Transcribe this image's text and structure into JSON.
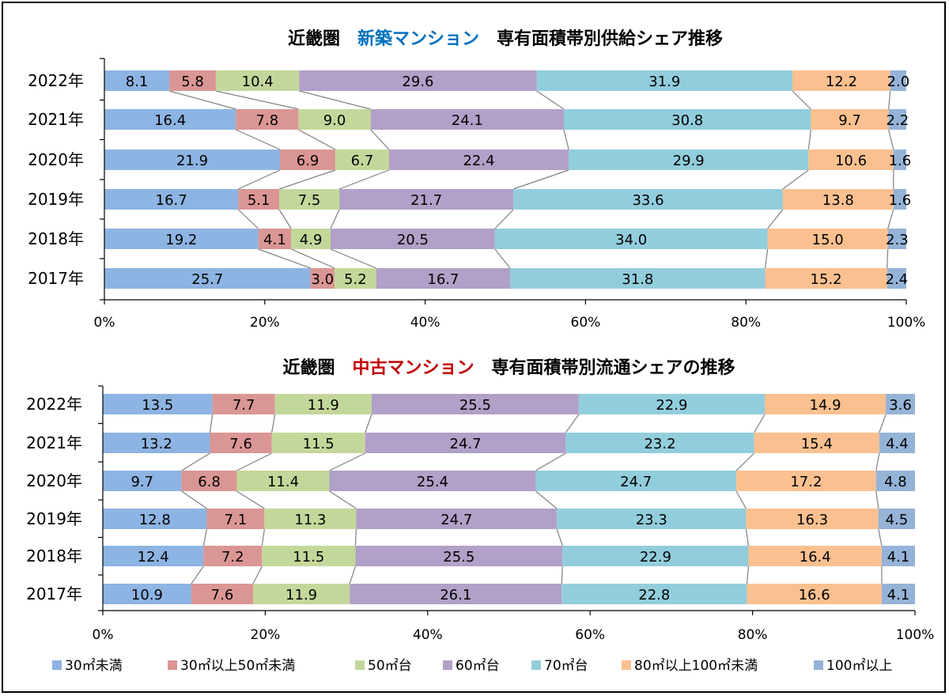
{
  "chart_data": [
    {
      "type": "bar",
      "orientation": "horizontal-stacked-percent",
      "title": {
        "prefix": "近畿圏",
        "highlight": "新築マンション",
        "highlight_color": "#0070c0",
        "suffix": "専有面積帯別供給シェア推移"
      },
      "categories": [
        "2022年",
        "2021年",
        "2020年",
        "2019年",
        "2018年",
        "2017年"
      ],
      "xlim": [
        0,
        100
      ],
      "x_ticks": [
        "0%",
        "20%",
        "40%",
        "60%",
        "80%",
        "100%"
      ],
      "series": [
        {
          "name": "30㎡未満",
          "values": [
            8.1,
            16.4,
            21.9,
            16.7,
            19.2,
            25.7
          ]
        },
        {
          "name": "30㎡以上50㎡未満",
          "values": [
            5.8,
            7.8,
            6.9,
            5.1,
            4.1,
            3.0
          ]
        },
        {
          "name": "50㎡台",
          "values": [
            10.4,
            9.0,
            6.7,
            7.5,
            4.9,
            5.2
          ]
        },
        {
          "name": "60㎡台",
          "values": [
            29.6,
            24.1,
            22.4,
            21.7,
            20.5,
            16.7
          ]
        },
        {
          "name": "70㎡台",
          "values": [
            31.9,
            30.8,
            29.9,
            33.6,
            34.0,
            31.8
          ]
        },
        {
          "name": "80㎡以上100㎡未満",
          "values": [
            12.2,
            9.7,
            10.6,
            13.8,
            15.0,
            15.2
          ]
        },
        {
          "name": "100㎡以上",
          "values": [
            2.0,
            2.2,
            1.6,
            1.6,
            2.3,
            2.4
          ]
        }
      ],
      "series_lines": true
    },
    {
      "type": "bar",
      "orientation": "horizontal-stacked-percent",
      "title": {
        "prefix": "近畿圏",
        "highlight": "中古マンション",
        "highlight_color": "#c00000",
        "suffix": "専有面積帯別流通シェアの推移"
      },
      "categories": [
        "2022年",
        "2021年",
        "2020年",
        "2019年",
        "2018年",
        "2017年"
      ],
      "xlim": [
        0,
        100
      ],
      "x_ticks": [
        "0%",
        "20%",
        "40%",
        "60%",
        "80%",
        "100%"
      ],
      "series": [
        {
          "name": "30㎡未満",
          "values": [
            13.5,
            13.2,
            9.7,
            12.8,
            12.4,
            10.9
          ]
        },
        {
          "name": "30㎡以上50㎡未満",
          "values": [
            7.7,
            7.6,
            6.8,
            7.1,
            7.2,
            7.6
          ]
        },
        {
          "name": "50㎡台",
          "values": [
            11.9,
            11.5,
            11.4,
            11.3,
            11.5,
            11.9
          ]
        },
        {
          "name": "60㎡台",
          "values": [
            25.5,
            24.7,
            25.4,
            24.7,
            25.5,
            26.1
          ]
        },
        {
          "name": "70㎡台",
          "values": [
            22.9,
            23.2,
            24.7,
            23.3,
            22.9,
            22.8
          ]
        },
        {
          "name": "80㎡以上100㎡未満",
          "values": [
            14.9,
            15.4,
            17.2,
            16.3,
            16.4,
            16.6
          ]
        },
        {
          "name": "100㎡以上",
          "values": [
            3.6,
            4.4,
            4.8,
            4.5,
            4.1,
            4.1
          ]
        }
      ],
      "series_lines": true
    }
  ],
  "series_colors": [
    "#8db4e2",
    "#da9694",
    "#c4d79b",
    "#b1a0c7",
    "#92cddc",
    "#fac090",
    "#95b3d7"
  ],
  "legend": {
    "placement": "bottom",
    "items": [
      "30㎡未満",
      "30㎡以上50㎡未満",
      "50㎡台",
      "60㎡台",
      "70㎡台",
      "80㎡以上100㎡未満",
      "100㎡以上"
    ]
  }
}
